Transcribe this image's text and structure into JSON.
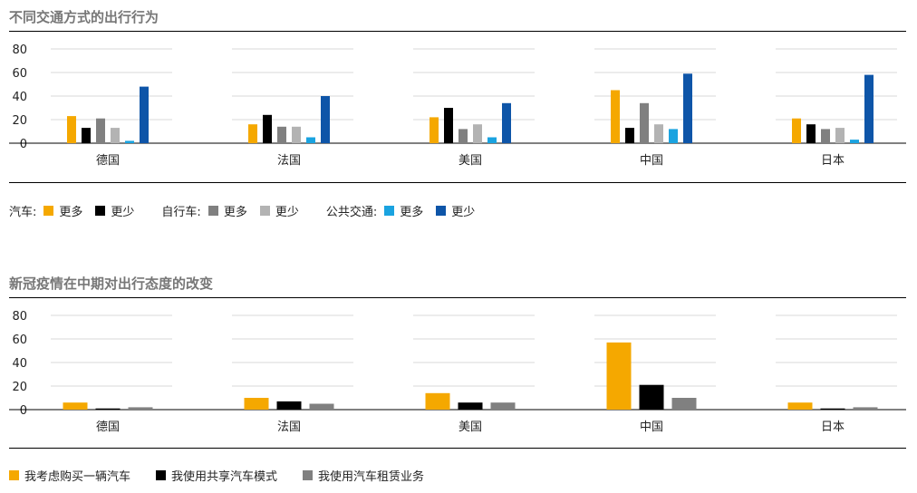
{
  "chart_data": [
    {
      "type": "bar",
      "title": "不同交通方式的出行行为",
      "categories": [
        "德国",
        "法国",
        "美国",
        "中国",
        "日本"
      ],
      "ylim": [
        0,
        80
      ],
      "yticks": [
        0,
        20,
        40,
        60,
        80
      ],
      "grid": true,
      "legend_position": "bottom",
      "legend_groups": [
        {
          "label": "汽车:",
          "series_indices": [
            0,
            1
          ]
        },
        {
          "label": "自行车:",
          "series_indices": [
            2,
            3
          ]
        },
        {
          "label": "公共交通:",
          "series_indices": [
            4,
            5
          ]
        }
      ],
      "series": [
        {
          "name": "更多",
          "color": "#f5a800",
          "values": [
            23,
            16,
            22,
            45,
            21
          ]
        },
        {
          "name": "更少",
          "color": "#000000",
          "values": [
            13,
            24,
            30,
            13,
            16
          ]
        },
        {
          "name": "更多",
          "color": "#808080",
          "values": [
            21,
            14,
            12,
            34,
            12
          ]
        },
        {
          "name": "更少",
          "color": "#b3b3b3",
          "values": [
            13,
            14,
            16,
            16,
            13
          ]
        },
        {
          "name": "更多",
          "color": "#1aa3e0",
          "values": [
            2,
            5,
            5,
            12,
            3
          ]
        },
        {
          "name": "更少",
          "color": "#0e55a8",
          "values": [
            48,
            40,
            34,
            59,
            58
          ]
        }
      ]
    },
    {
      "type": "bar",
      "title": "新冠疫情在中期对出行态度的改变",
      "categories": [
        "德国",
        "法国",
        "美国",
        "中国",
        "日本"
      ],
      "ylim": [
        0,
        80
      ],
      "yticks": [
        0,
        20,
        40,
        60,
        80
      ],
      "grid": true,
      "legend_position": "bottom",
      "series": [
        {
          "name": "我考虑购买一辆汽车",
          "color": "#f5a800",
          "values": [
            6,
            10,
            14,
            57,
            6
          ]
        },
        {
          "name": "我使用共享汽车模式",
          "color": "#000000",
          "values": [
            1,
            7,
            6,
            21,
            1
          ]
        },
        {
          "name": "我使用汽车租赁业务",
          "color": "#808080",
          "values": [
            2,
            5,
            6,
            10,
            2
          ]
        }
      ]
    }
  ]
}
